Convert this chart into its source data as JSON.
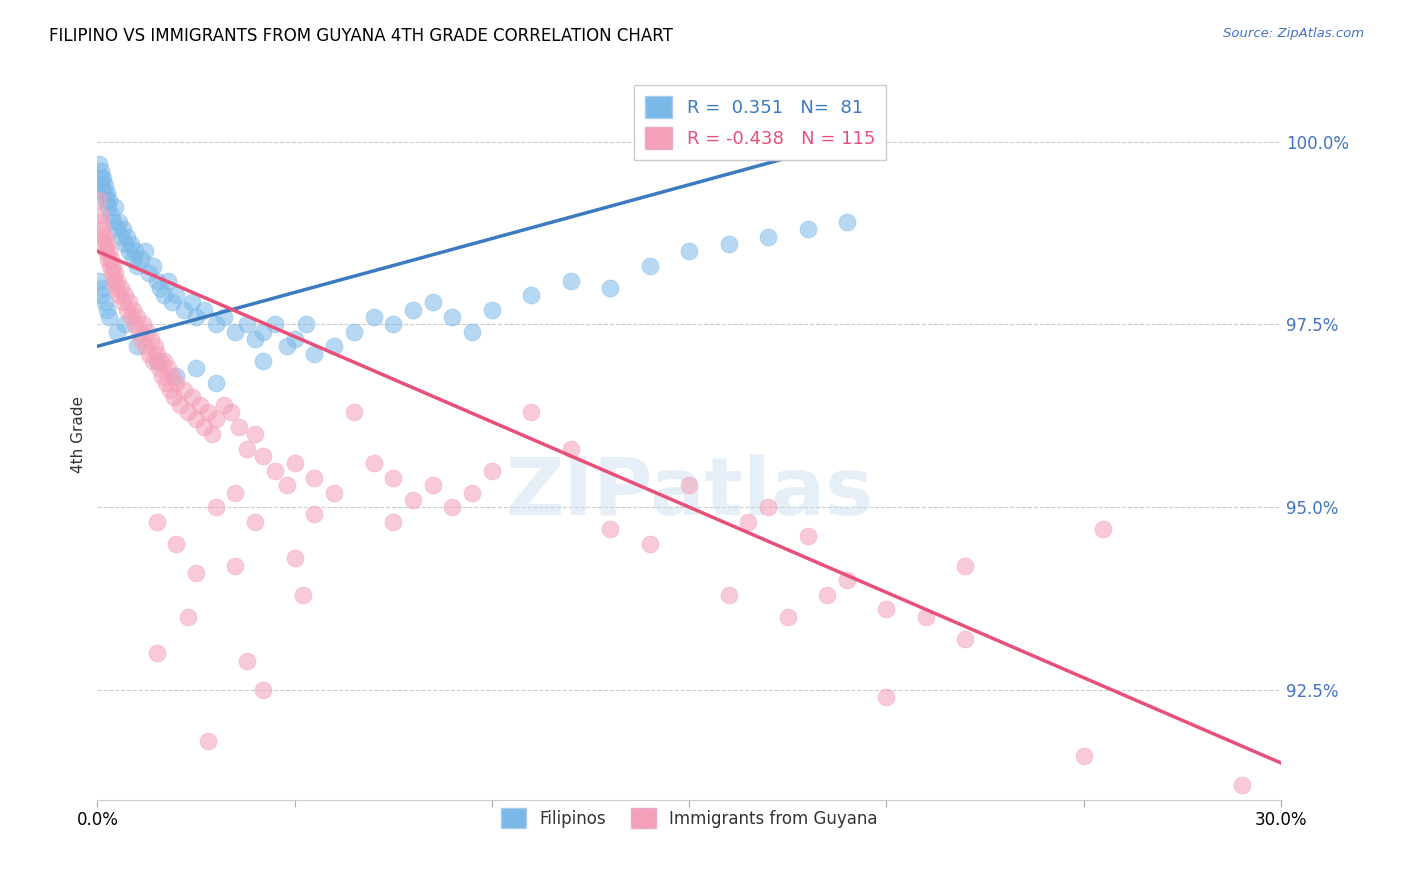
{
  "title": "FILIPINO VS IMMIGRANTS FROM GUYANA 4TH GRADE CORRELATION CHART",
  "source": "Source: ZipAtlas.com",
  "ylabel": "4th Grade",
  "xlim": [
    0.0,
    30.0
  ],
  "ylim": [
    91.0,
    101.0
  ],
  "yticks": [
    92.5,
    95.0,
    97.5,
    100.0
  ],
  "ytick_labels": [
    "92.5%",
    "95.0%",
    "97.5%",
    "100.0%"
  ],
  "xticks": [
    0.0,
    5.0,
    10.0,
    15.0,
    20.0,
    25.0,
    30.0
  ],
  "blue_R": 0.351,
  "blue_N": 81,
  "pink_R": -0.438,
  "pink_N": 115,
  "blue_color": "#7ab8e8",
  "pink_color": "#f4a0b8",
  "blue_line_color": "#3a7abf",
  "pink_line_color": "#e8507a",
  "watermark": "ZIPatlas",
  "legend_label_blue": "Filipinos",
  "legend_label_pink": "Immigrants from Guyana",
  "blue_line": [
    0.0,
    97.2,
    19.0,
    100.0
  ],
  "pink_line": [
    0.0,
    98.5,
    30.0,
    91.5
  ],
  "blue_dots": [
    [
      0.05,
      99.7
    ],
    [
      0.08,
      99.5
    ],
    [
      0.1,
      99.6
    ],
    [
      0.12,
      99.4
    ],
    [
      0.15,
      99.5
    ],
    [
      0.18,
      99.3
    ],
    [
      0.2,
      99.4
    ],
    [
      0.22,
      99.2
    ],
    [
      0.25,
      99.3
    ],
    [
      0.28,
      99.1
    ],
    [
      0.3,
      99.2
    ],
    [
      0.35,
      99.0
    ],
    [
      0.4,
      98.9
    ],
    [
      0.45,
      99.1
    ],
    [
      0.5,
      98.8
    ],
    [
      0.55,
      98.9
    ],
    [
      0.6,
      98.7
    ],
    [
      0.65,
      98.8
    ],
    [
      0.7,
      98.6
    ],
    [
      0.75,
      98.7
    ],
    [
      0.8,
      98.5
    ],
    [
      0.85,
      98.6
    ],
    [
      0.9,
      98.4
    ],
    [
      0.95,
      98.5
    ],
    [
      1.0,
      98.3
    ],
    [
      1.1,
      98.4
    ],
    [
      1.2,
      98.5
    ],
    [
      1.3,
      98.2
    ],
    [
      1.4,
      98.3
    ],
    [
      1.5,
      98.1
    ],
    [
      1.6,
      98.0
    ],
    [
      1.7,
      97.9
    ],
    [
      1.8,
      98.1
    ],
    [
      1.9,
      97.8
    ],
    [
      2.0,
      97.9
    ],
    [
      2.2,
      97.7
    ],
    [
      2.4,
      97.8
    ],
    [
      2.5,
      97.6
    ],
    [
      2.7,
      97.7
    ],
    [
      3.0,
      97.5
    ],
    [
      3.2,
      97.6
    ],
    [
      3.5,
      97.4
    ],
    [
      3.8,
      97.5
    ],
    [
      4.0,
      97.3
    ],
    [
      4.2,
      97.4
    ],
    [
      4.5,
      97.5
    ],
    [
      4.8,
      97.2
    ],
    [
      5.0,
      97.3
    ],
    [
      5.3,
      97.5
    ],
    [
      5.5,
      97.1
    ],
    [
      6.0,
      97.2
    ],
    [
      6.5,
      97.4
    ],
    [
      7.0,
      97.6
    ],
    [
      7.5,
      97.5
    ],
    [
      8.0,
      97.7
    ],
    [
      8.5,
      97.8
    ],
    [
      9.0,
      97.6
    ],
    [
      9.5,
      97.4
    ],
    [
      10.0,
      97.7
    ],
    [
      11.0,
      97.9
    ],
    [
      12.0,
      98.1
    ],
    [
      13.0,
      98.0
    ],
    [
      14.0,
      98.3
    ],
    [
      15.0,
      98.5
    ],
    [
      16.0,
      98.6
    ],
    [
      17.0,
      98.7
    ],
    [
      18.0,
      98.8
    ],
    [
      19.0,
      98.9
    ],
    [
      0.05,
      98.1
    ],
    [
      0.1,
      97.9
    ],
    [
      0.15,
      98.0
    ],
    [
      0.2,
      97.8
    ],
    [
      0.25,
      97.7
    ],
    [
      0.3,
      97.6
    ],
    [
      0.5,
      97.4
    ],
    [
      0.7,
      97.5
    ],
    [
      1.0,
      97.2
    ],
    [
      1.5,
      97.0
    ],
    [
      2.0,
      96.8
    ],
    [
      2.5,
      96.9
    ],
    [
      3.0,
      96.7
    ],
    [
      4.2,
      97.0
    ]
  ],
  "pink_dots": [
    [
      0.05,
      99.2
    ],
    [
      0.08,
      99.0
    ],
    [
      0.1,
      98.9
    ],
    [
      0.12,
      98.7
    ],
    [
      0.15,
      98.8
    ],
    [
      0.18,
      98.6
    ],
    [
      0.2,
      98.7
    ],
    [
      0.22,
      98.5
    ],
    [
      0.25,
      98.6
    ],
    [
      0.28,
      98.4
    ],
    [
      0.3,
      98.5
    ],
    [
      0.32,
      98.3
    ],
    [
      0.35,
      98.4
    ],
    [
      0.38,
      98.2
    ],
    [
      0.4,
      98.3
    ],
    [
      0.42,
      98.1
    ],
    [
      0.45,
      98.2
    ],
    [
      0.48,
      98.0
    ],
    [
      0.5,
      98.1
    ],
    [
      0.55,
      97.9
    ],
    [
      0.6,
      98.0
    ],
    [
      0.65,
      97.8
    ],
    [
      0.7,
      97.9
    ],
    [
      0.75,
      97.7
    ],
    [
      0.8,
      97.8
    ],
    [
      0.85,
      97.6
    ],
    [
      0.9,
      97.7
    ],
    [
      0.95,
      97.5
    ],
    [
      1.0,
      97.6
    ],
    [
      1.05,
      97.4
    ],
    [
      1.1,
      97.3
    ],
    [
      1.15,
      97.5
    ],
    [
      1.2,
      97.2
    ],
    [
      1.25,
      97.4
    ],
    [
      1.3,
      97.1
    ],
    [
      1.35,
      97.3
    ],
    [
      1.4,
      97.0
    ],
    [
      1.45,
      97.2
    ],
    [
      1.5,
      97.1
    ],
    [
      1.55,
      96.9
    ],
    [
      1.6,
      97.0
    ],
    [
      1.65,
      96.8
    ],
    [
      1.7,
      97.0
    ],
    [
      1.75,
      96.7
    ],
    [
      1.8,
      96.9
    ],
    [
      1.85,
      96.6
    ],
    [
      1.9,
      96.8
    ],
    [
      1.95,
      96.5
    ],
    [
      2.0,
      96.7
    ],
    [
      2.1,
      96.4
    ],
    [
      2.2,
      96.6
    ],
    [
      2.3,
      96.3
    ],
    [
      2.4,
      96.5
    ],
    [
      2.5,
      96.2
    ],
    [
      2.6,
      96.4
    ],
    [
      2.7,
      96.1
    ],
    [
      2.8,
      96.3
    ],
    [
      2.9,
      96.0
    ],
    [
      3.0,
      96.2
    ],
    [
      3.2,
      96.4
    ],
    [
      3.4,
      96.3
    ],
    [
      3.6,
      96.1
    ],
    [
      3.8,
      95.8
    ],
    [
      4.0,
      96.0
    ],
    [
      4.2,
      95.7
    ],
    [
      4.5,
      95.5
    ],
    [
      4.8,
      95.3
    ],
    [
      5.0,
      95.6
    ],
    [
      5.5,
      95.4
    ],
    [
      6.0,
      95.2
    ],
    [
      6.5,
      96.3
    ],
    [
      7.0,
      95.6
    ],
    [
      7.5,
      95.4
    ],
    [
      8.0,
      95.1
    ],
    [
      8.5,
      95.3
    ],
    [
      9.0,
      95.0
    ],
    [
      9.5,
      95.2
    ],
    [
      10.0,
      95.5
    ],
    [
      11.0,
      96.3
    ],
    [
      12.0,
      95.8
    ],
    [
      13.0,
      94.7
    ],
    [
      14.0,
      94.5
    ],
    [
      15.0,
      95.3
    ],
    [
      16.0,
      93.8
    ],
    [
      17.0,
      95.0
    ],
    [
      18.0,
      94.6
    ],
    [
      19.0,
      94.0
    ],
    [
      20.0,
      93.6
    ],
    [
      21.0,
      93.5
    ],
    [
      22.0,
      94.2
    ],
    [
      1.5,
      93.0
    ],
    [
      2.3,
      93.5
    ],
    [
      2.8,
      91.8
    ],
    [
      3.5,
      94.2
    ],
    [
      3.8,
      92.9
    ],
    [
      4.2,
      92.5
    ],
    [
      5.2,
      93.8
    ],
    [
      7.5,
      94.8
    ],
    [
      1.5,
      94.8
    ],
    [
      2.0,
      94.5
    ],
    [
      2.5,
      94.1
    ],
    [
      3.0,
      95.0
    ],
    [
      3.5,
      95.2
    ],
    [
      4.0,
      94.8
    ],
    [
      5.0,
      94.3
    ],
    [
      5.5,
      94.9
    ],
    [
      16.5,
      94.8
    ],
    [
      17.5,
      93.5
    ],
    [
      18.5,
      93.8
    ],
    [
      20.0,
      92.4
    ],
    [
      22.0,
      93.2
    ],
    [
      25.0,
      91.6
    ],
    [
      25.5,
      94.7
    ],
    [
      29.0,
      91.2
    ]
  ]
}
